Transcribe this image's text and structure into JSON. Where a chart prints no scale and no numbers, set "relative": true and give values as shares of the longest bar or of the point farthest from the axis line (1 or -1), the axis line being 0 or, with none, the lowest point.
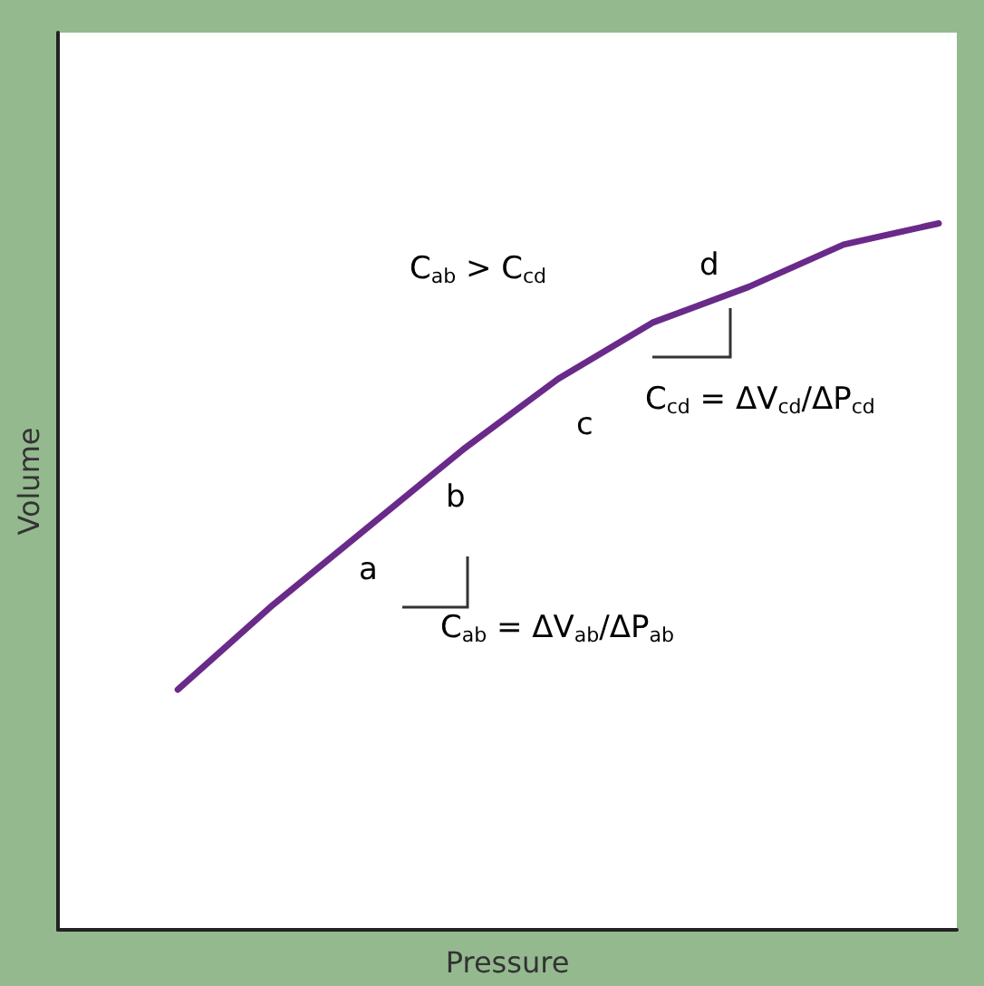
{
  "chart_data": {
    "type": "line",
    "relative": true,
    "xlabel": "Pressure",
    "ylabel": "Volume",
    "categories": [
      null,
      null,
      null,
      null,
      null,
      null,
      null,
      null,
      null
    ],
    "series": [
      {
        "color": "#6a2a8a",
        "values": [
          0.34,
          0.46,
          0.57,
          0.68,
          0.78,
          0.86,
          0.91,
          0.97,
          1.0
        ]
      }
    ],
    "marker": "none",
    "line_style": "solid",
    "grid": false,
    "annotations": [
      "C$_{ab}$ > C$_{cd}$",
      "a",
      "b",
      "c",
      "d",
      "C$_{cd}$ = ΔV$_{cd}$/ΔP$_{cd}$",
      "C$_{ab}$ = ΔV$_{ab}$/ΔP$_{ab}$"
    ]
  }
}
